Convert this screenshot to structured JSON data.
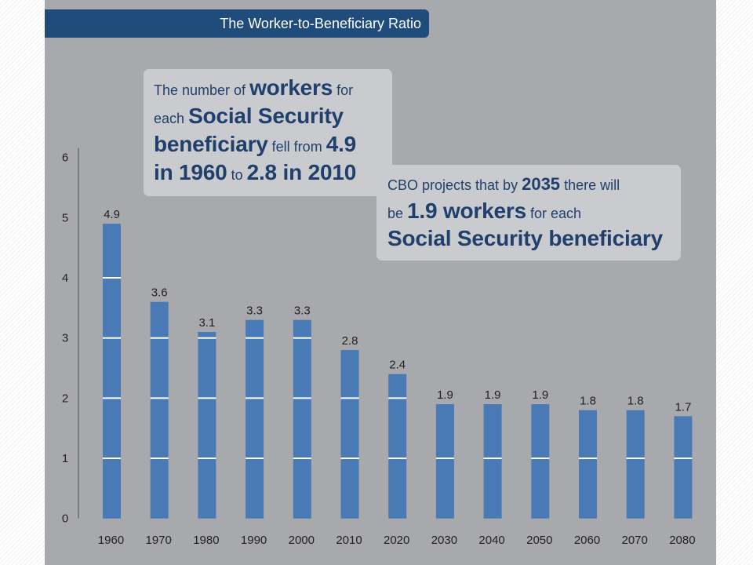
{
  "chart_data": {
    "type": "bar",
    "title": "The Worker-to-Beneficiary Ratio",
    "categories": [
      "1960",
      "1970",
      "1980",
      "1990",
      "2000",
      "2010",
      "2020",
      "2030",
      "2040",
      "2050",
      "2060",
      "2070",
      "2080"
    ],
    "values": [
      4.9,
      3.6,
      3.1,
      3.3,
      3.3,
      2.8,
      2.4,
      1.9,
      1.9,
      1.9,
      1.8,
      1.8,
      1.7
    ],
    "xlabel": "",
    "ylabel": "",
    "ylim": [
      0,
      6
    ],
    "yticks": [
      0,
      1,
      2,
      3,
      4,
      5,
      6
    ],
    "grid": true,
    "annotations": [
      {
        "lines": [
          [
            "The number of",
            "workers",
            "for"
          ],
          [
            "each",
            "Social Security"
          ],
          [
            "beneficiary",
            "fell from",
            "4.9"
          ],
          [
            "in 1960",
            "to",
            "2.8 in 2010"
          ]
        ]
      },
      {
        "lines": [
          [
            "CBO projects that by",
            "2035",
            "there will"
          ],
          [
            "be",
            "1.9 workers",
            "for each"
          ],
          [
            "Social Security beneficiary"
          ]
        ]
      }
    ]
  },
  "colors": {
    "panel": "#a7a9ac",
    "banner": "#1f4c7a",
    "bar": "#4a7ab6",
    "bar_stripe": "#ffffff",
    "annotation_box": "#cacbce",
    "annotation_text": "#1f3f6c",
    "axis_text": "#231f20"
  }
}
